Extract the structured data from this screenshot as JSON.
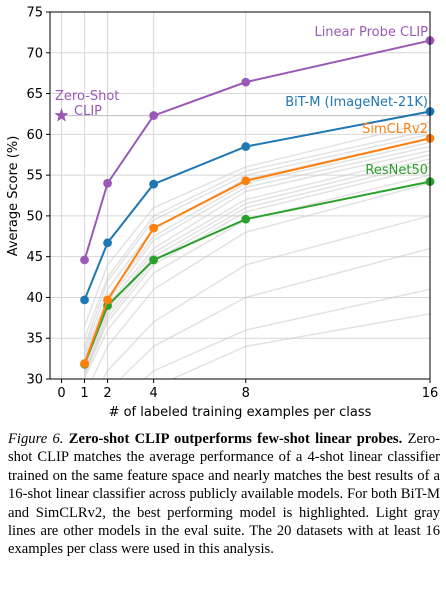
{
  "chart_data": {
    "type": "line",
    "xlabel": "# of labeled training examples per class",
    "ylabel": "Average Score (%)",
    "ylim": [
      30,
      75
    ],
    "xticks": [
      0,
      1,
      2,
      4,
      8,
      16
    ],
    "yticks": [
      30,
      35,
      40,
      45,
      50,
      55,
      60,
      65,
      70,
      75
    ],
    "grid": true,
    "x": [
      1,
      2,
      4,
      8,
      16
    ],
    "series": [
      {
        "name": "Linear Probe CLIP",
        "color": "#9b59b6",
        "values": [
          44.6,
          54.0,
          62.3,
          66.4,
          71.5
        ]
      },
      {
        "name": "BiT-M (ImageNet-21K)",
        "color": "#1f77b4",
        "values": [
          39.7,
          46.7,
          53.9,
          58.5,
          62.8
        ]
      },
      {
        "name": "SimCLRv2",
        "color": "#ff7f0e",
        "values": [
          31.9,
          39.7,
          48.5,
          54.3,
          59.5
        ]
      },
      {
        "name": "ResNet50",
        "color": "#2ca02c",
        "values": [
          31.8,
          39.0,
          44.6,
          49.6,
          54.2
        ]
      }
    ],
    "zero_shot": {
      "name": "Zero-Shot\nCLIP",
      "x": 0,
      "y": 62.3,
      "color": "#9b59b6"
    },
    "gray_lines": [
      [
        36.5,
        44.0,
        51.0,
        56.0,
        61.5
      ],
      [
        35.0,
        42.5,
        50.0,
        55.5,
        60.5
      ],
      [
        34.0,
        42.0,
        49.5,
        55.0,
        60.0
      ],
      [
        33.5,
        41.0,
        48.5,
        54.5,
        59.5
      ],
      [
        33.0,
        40.0,
        47.5,
        54.0,
        59.0
      ],
      [
        32.5,
        39.5,
        47.0,
        53.5,
        58.5
      ],
      [
        32.0,
        39.0,
        46.0,
        53.0,
        58.0
      ],
      [
        31.5,
        38.5,
        45.5,
        52.0,
        57.5
      ],
      [
        31.0,
        38.0,
        45.0,
        51.5,
        57.0
      ],
      [
        30.8,
        37.5,
        44.5,
        51.0,
        56.5
      ],
      [
        30.5,
        37.0,
        44.0,
        50.5,
        56.0
      ],
      [
        30.2,
        36.0,
        43.0,
        49.5,
        55.0
      ],
      [
        28.0,
        34.0,
        41.0,
        48.0,
        54.0
      ],
      [
        26.0,
        31.0,
        37.0,
        44.0,
        50.0
      ],
      [
        24.0,
        28.5,
        34.0,
        40.0,
        46.0
      ],
      [
        22.0,
        26.0,
        31.0,
        36.0,
        41.0
      ],
      [
        20.0,
        24.0,
        29.0,
        34.0,
        38.0
      ]
    ]
  },
  "caption": {
    "fig_label": "Figure 6.",
    "bold_title": "Zero-shot CLIP outperforms few-shot linear probes.",
    "body": "Zero-shot CLIP matches the average performance of a 4-shot linear classifier trained on the same feature space and nearly matches the best results of a 16-shot linear classifier across publicly available models. For both BiT-M and SimCLRv2, the best performing model is highlighted. Light gray lines are other models in the eval suite. The 20 datasets with at least 16 examples per class were used in this analysis."
  }
}
